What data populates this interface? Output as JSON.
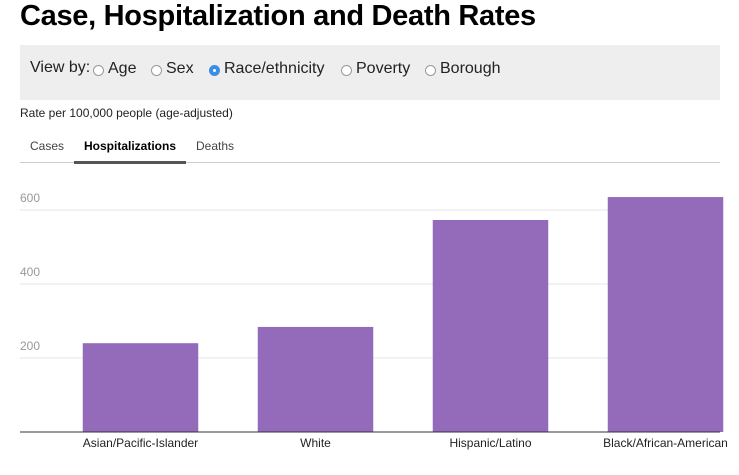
{
  "header": {
    "title": "Case, Hospitalization and Death Rates"
  },
  "controls": {
    "label": "View by:",
    "options": [
      "Age",
      "Sex",
      "Race/ethnicity",
      "Poverty",
      "Borough"
    ],
    "selected": 2
  },
  "subtitle": "Rate per 100,000 people (age-adjusted)",
  "tabs": {
    "items": [
      "Cases",
      "Hospitalizations",
      "Deaths"
    ],
    "active": 1
  },
  "chart_data": {
    "type": "bar",
    "categories": [
      "Asian/Pacific-Islander",
      "White",
      "Hispanic/Latino",
      "Black/African-American"
    ],
    "values": [
      240,
      284,
      573,
      635
    ],
    "color": "#946bbb",
    "ylim": [
      0,
      700
    ],
    "yticks": [
      200,
      400,
      600
    ],
    "grid": true
  }
}
